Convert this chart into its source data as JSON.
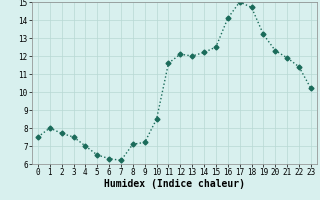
{
  "x": [
    0,
    1,
    2,
    3,
    4,
    5,
    6,
    7,
    8,
    9,
    10,
    11,
    12,
    13,
    14,
    15,
    16,
    17,
    18,
    19,
    20,
    21,
    22,
    23
  ],
  "y": [
    7.5,
    8.0,
    7.7,
    7.5,
    7.0,
    6.5,
    6.3,
    6.2,
    7.1,
    7.2,
    8.5,
    11.6,
    12.1,
    12.0,
    12.2,
    12.5,
    14.1,
    15.0,
    14.7,
    13.2,
    12.3,
    11.9,
    11.4,
    10.2
  ],
  "line_color": "#1a6b5a",
  "marker": "D",
  "marker_size": 2.5,
  "bg_color": "#d8f0ee",
  "grid_color": "#b8d8d4",
  "xlabel": "Humidex (Indice chaleur)",
  "xlim": [
    -0.5,
    23.5
  ],
  "ylim": [
    6,
    15
  ],
  "yticks": [
    6,
    7,
    8,
    9,
    10,
    11,
    12,
    13,
    14,
    15
  ],
  "xticks": [
    0,
    1,
    2,
    3,
    4,
    5,
    6,
    7,
    8,
    9,
    10,
    11,
    12,
    13,
    14,
    15,
    16,
    17,
    18,
    19,
    20,
    21,
    22,
    23
  ],
  "tick_fontsize": 5.5,
  "xlabel_fontsize": 7,
  "line_width": 1.0
}
